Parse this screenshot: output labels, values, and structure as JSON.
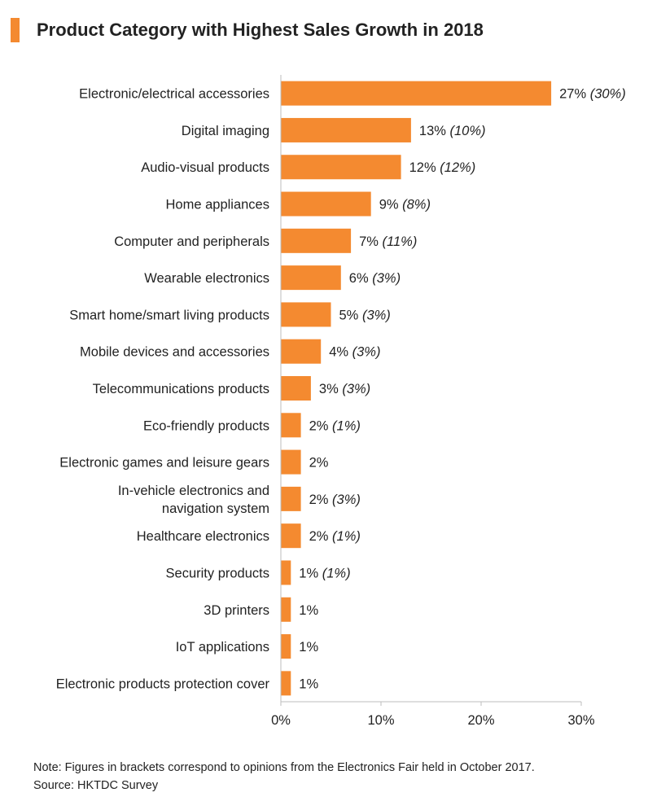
{
  "title": "Product Category with Highest Sales Growth in 2018",
  "note": "Note: Figures in brackets correspond to opinions from the Electronics Fair held in October 2017.",
  "source": "Source: HKTDC Survey",
  "colors": {
    "bar": "#F48A30",
    "axis": "#BDBDBD",
    "text": "#222222"
  },
  "chart_data": {
    "type": "bar",
    "orientation": "horizontal",
    "xlim": [
      0,
      30
    ],
    "ticks": [
      "0%",
      "10%",
      "20%",
      "30%"
    ],
    "categories": [
      [
        "Electronic/electrical accessories"
      ],
      [
        "Digital imaging"
      ],
      [
        "Audio-visual products"
      ],
      [
        "Home appliances"
      ],
      [
        "Computer and peripherals"
      ],
      [
        "Wearable electronics"
      ],
      [
        "Smart home/smart living products"
      ],
      [
        "Mobile devices and accessories"
      ],
      [
        "Telecommunications products"
      ],
      [
        "Eco-friendly products"
      ],
      [
        "Electronic games and leisure gears"
      ],
      [
        "In-vehicle electronics and",
        "navigation system"
      ],
      [
        "Healthcare electronics"
      ],
      [
        "Security products"
      ],
      [
        "3D printers"
      ],
      [
        "IoT applications"
      ],
      [
        "Electronic products protection cover"
      ]
    ],
    "values": [
      27,
      13,
      12,
      9,
      7,
      6,
      5,
      4,
      3,
      2,
      2,
      2,
      2,
      1,
      1,
      1,
      1
    ],
    "value_labels": [
      "27%",
      "13%",
      "12%",
      "9%",
      "7%",
      "6%",
      "5%",
      "4%",
      "3%",
      "2%",
      "2%",
      "2%",
      "2%",
      "1%",
      "1%",
      "1%",
      "1%"
    ],
    "bracket_labels": [
      "(30%)",
      "(10%)",
      "(12%)",
      "(8%)",
      "(11%)",
      "(3%)",
      "(3%)",
      "(3%)",
      "(3%)",
      "(1%)",
      "",
      "(3%)",
      "(1%)",
      "(1%)",
      "",
      "",
      ""
    ]
  }
}
